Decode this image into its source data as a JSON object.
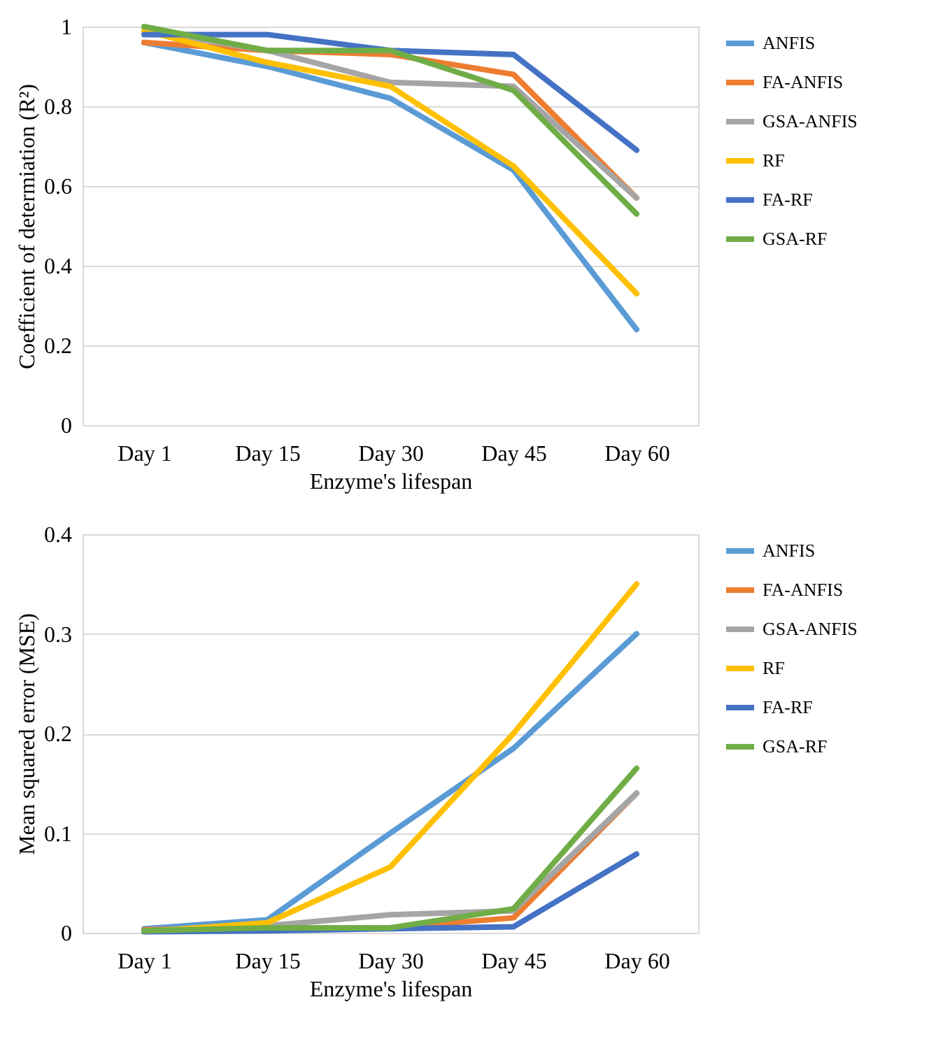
{
  "chart_data": [
    {
      "type": "line",
      "xlabel": "Enzyme's lifespan",
      "ylabel": "Coefficient of determiation (R²)",
      "categories": [
        "Day 1",
        "Day 15",
        "Day 30",
        "Day 45",
        "Day 60"
      ],
      "ylim": [
        0,
        1
      ],
      "yticks": [
        0,
        0.2,
        0.4,
        0.6,
        0.8,
        1
      ],
      "grid": "y",
      "legend": "right",
      "series": [
        {
          "name": "ANFIS",
          "color": "#5b9bd5",
          "values": [
            0.96,
            0.9,
            0.82,
            0.64,
            0.24
          ]
        },
        {
          "name": "FA-ANFIS",
          "color": "#ed7d31",
          "values": [
            0.96,
            0.94,
            0.93,
            0.88,
            0.57
          ]
        },
        {
          "name": "GSA-ANFIS",
          "color": "#a5a5a5",
          "values": [
            0.99,
            0.94,
            0.86,
            0.85,
            0.57
          ]
        },
        {
          "name": "RF",
          "color": "#ffc000",
          "values": [
            0.99,
            0.91,
            0.85,
            0.65,
            0.33
          ]
        },
        {
          "name": "FA-RF",
          "color": "#4472c4",
          "values": [
            0.98,
            0.98,
            0.94,
            0.93,
            0.69
          ]
        },
        {
          "name": "GSA-RF",
          "color": "#70ad47",
          "values": [
            1.0,
            0.94,
            0.94,
            0.84,
            0.53
          ]
        }
      ]
    },
    {
      "type": "line",
      "xlabel": "Enzyme's lifespan",
      "ylabel": "Mean squared error (MSE)",
      "categories": [
        "Day 1",
        "Day 15",
        "Day 30",
        "Day 45",
        "Day 60"
      ],
      "ylim": [
        0,
        0.4
      ],
      "yticks": [
        0,
        0.1,
        0.2,
        0.3,
        0.4
      ],
      "grid": "y",
      "legend": "right",
      "series": [
        {
          "name": "ANFIS",
          "color": "#5b9bd5",
          "values": [
            0.004,
            0.013,
            0.1,
            0.185,
            0.3
          ]
        },
        {
          "name": "FA-ANFIS",
          "color": "#ed7d31",
          "values": [
            0.003,
            0.005,
            0.005,
            0.015,
            0.14
          ]
        },
        {
          "name": "GSA-ANFIS",
          "color": "#a5a5a5",
          "values": [
            0.002,
            0.007,
            0.018,
            0.022,
            0.14
          ]
        },
        {
          "name": "RF",
          "color": "#ffc000",
          "values": [
            0.001,
            0.01,
            0.066,
            0.2,
            0.35
          ]
        },
        {
          "name": "FA-RF",
          "color": "#4472c4",
          "values": [
            0.001,
            0.002,
            0.004,
            0.006,
            0.079
          ]
        },
        {
          "name": "GSA-RF",
          "color": "#70ad47",
          "values": [
            0.002,
            0.005,
            0.005,
            0.024,
            0.165
          ]
        }
      ]
    }
  ]
}
